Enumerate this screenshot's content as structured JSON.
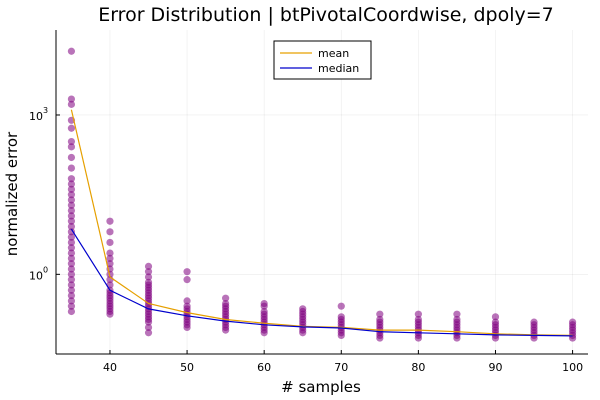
{
  "chart_data": {
    "type": "scatter",
    "title": "Error Distribution | btPivotalCoordwise, dpoly=7",
    "xlabel": "# samples",
    "ylabel": "normalized error",
    "xlim": [
      33,
      102
    ],
    "ylim_log10": [
      -1.5,
      4.6
    ],
    "yscale": "log10",
    "grid": true,
    "legend_position": "top-center",
    "x_ticks": [
      40,
      50,
      60,
      70,
      80,
      90,
      100
    ],
    "y_ticks": [
      {
        "exp": 0,
        "label": "10",
        "sup": "0"
      },
      {
        "exp": 3,
        "label": "10",
        "sup": "3"
      }
    ],
    "x": [
      35,
      40,
      45,
      50,
      55,
      60,
      65,
      70,
      75,
      80,
      85,
      90,
      95,
      100
    ],
    "series": [
      {
        "name": "mean",
        "color": "#e6a000",
        "values_log10": [
          3.1,
          -0.05,
          -0.55,
          -0.72,
          -0.85,
          -0.92,
          -0.98,
          -1.0,
          -1.05,
          -1.05,
          -1.08,
          -1.12,
          -1.14,
          -1.15
        ]
      },
      {
        "name": "median",
        "color": "#0000cc",
        "values_log10": [
          0.85,
          -0.3,
          -0.65,
          -0.78,
          -0.88,
          -0.95,
          -0.99,
          -1.01,
          -1.08,
          -1.1,
          -1.12,
          -1.14,
          -1.15,
          -1.16
        ]
      }
    ],
    "scatter_color": "#800080",
    "scatter_log10": [
      [
        4.2,
        2.4,
        2.5,
        3.2,
        3.3,
        2.9,
        2.75,
        2.2,
        2.0,
        1.8,
        1.7,
        1.6,
        1.5,
        1.4,
        1.3,
        1.2,
        1.1,
        1.0,
        0.9,
        0.8,
        0.7,
        0.6,
        0.5,
        0.4,
        0.3,
        0.2,
        0.1,
        0.0,
        -0.1,
        -0.2,
        -0.3,
        -0.4,
        -0.5,
        -0.6,
        -0.7
      ],
      [
        1.0,
        0.8,
        0.6,
        0.4,
        0.3,
        0.2,
        0.1,
        0.0,
        -0.1,
        -0.2,
        -0.3,
        -0.35,
        -0.4,
        -0.45,
        -0.5,
        -0.55,
        -0.6,
        -0.65,
        -0.7,
        -0.75
      ],
      [
        0.15,
        0.05,
        -0.05,
        -0.15,
        -0.2,
        -0.25,
        -0.3,
        -0.35,
        -0.4,
        -0.45,
        -0.5,
        -0.55,
        -0.6,
        -0.65,
        -0.7,
        -0.75,
        -0.8,
        -0.85,
        -0.9,
        -1.0,
        -1.1
      ],
      [
        0.05,
        -0.1,
        -0.5,
        -0.6,
        -0.65,
        -0.7,
        -0.75,
        -0.8,
        -0.85,
        -0.9,
        -0.95,
        -1.0
      ],
      [
        -0.45,
        -0.55,
        -0.6,
        -0.65,
        -0.7,
        -0.75,
        -0.8,
        -0.85,
        -0.9,
        -0.95,
        -1.0,
        -1.05
      ],
      [
        -0.55,
        -0.6,
        -0.7,
        -0.75,
        -0.8,
        -0.85,
        -0.9,
        -0.95,
        -1.0,
        -1.05,
        -1.1
      ],
      [
        -0.65,
        -0.7,
        -0.75,
        -0.8,
        -0.85,
        -0.9,
        -0.95,
        -1.0,
        -1.05,
        -1.1
      ],
      [
        -0.6,
        -0.8,
        -0.85,
        -0.9,
        -0.95,
        -1.0,
        -1.05,
        -1.1,
        -1.15
      ],
      [
        -0.75,
        -0.85,
        -0.9,
        -0.95,
        -1.0,
        -1.05,
        -1.1,
        -1.15,
        -1.2
      ],
      [
        -0.75,
        -0.85,
        -0.9,
        -0.95,
        -1.0,
        -1.05,
        -1.1,
        -1.15,
        -1.2
      ],
      [
        -0.75,
        -0.85,
        -0.9,
        -0.95,
        -1.0,
        -1.05,
        -1.1,
        -1.15,
        -1.2
      ],
      [
        -0.8,
        -0.9,
        -0.95,
        -1.0,
        -1.05,
        -1.1,
        -1.15,
        -1.2
      ],
      [
        -0.9,
        -0.95,
        -1.0,
        -1.05,
        -1.1,
        -1.15,
        -1.2
      ],
      [
        -0.9,
        -0.95,
        -1.0,
        -1.05,
        -1.1,
        -1.15,
        -1.2
      ]
    ]
  }
}
